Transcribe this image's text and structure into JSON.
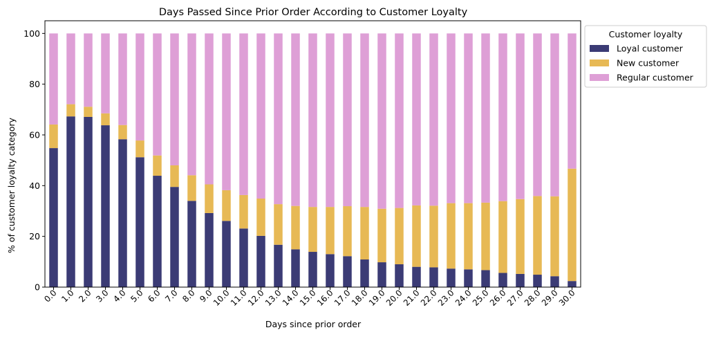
{
  "chart_data": {
    "type": "bar",
    "stacked": true,
    "title": "Days Passed Since Prior Order According to Customer Loyalty",
    "xlabel": "Days since prior order",
    "ylabel": "% of customer loyalty category",
    "ylim": [
      0,
      105
    ],
    "yticks": [
      0,
      20,
      40,
      60,
      80,
      100
    ],
    "grid": false,
    "legend": {
      "title": "Customer loyalty",
      "placement": "outside-top-right"
    },
    "categories": [
      "0.0",
      "1.0",
      "2.0",
      "3.0",
      "4.0",
      "5.0",
      "6.0",
      "7.0",
      "8.0",
      "9.0",
      "10.0",
      "11.0",
      "12.0",
      "13.0",
      "14.0",
      "15.0",
      "16.0",
      "17.0",
      "18.0",
      "19.0",
      "20.0",
      "21.0",
      "22.0",
      "23.0",
      "24.0",
      "25.0",
      "26.0",
      "27.0",
      "28.0",
      "29.0",
      "30.0"
    ],
    "series": [
      {
        "name": "Loyal customer",
        "color": "#3b3b75",
        "values": [
          54.8,
          67.3,
          67.1,
          63.8,
          58.3,
          51.2,
          43.9,
          39.5,
          34.0,
          29.2,
          26.1,
          23.1,
          20.2,
          16.7,
          14.9,
          13.9,
          13.0,
          12.2,
          10.9,
          9.8,
          9.0,
          8.0,
          7.8,
          7.3,
          7.0,
          6.7,
          5.6,
          5.2,
          4.9,
          4.3,
          2.4
        ]
      },
      {
        "name": "New customer",
        "color": "#e7b955",
        "values": [
          9.3,
          4.8,
          4.0,
          4.7,
          5.6,
          6.6,
          8.0,
          8.5,
          10.1,
          11.3,
          12.1,
          13.2,
          14.7,
          16.0,
          17.1,
          17.7,
          18.6,
          19.7,
          20.7,
          21.1,
          22.2,
          24.2,
          24.3,
          25.8,
          26.1,
          26.6,
          28.3,
          29.5,
          31.0,
          31.5,
          44.3
        ]
      },
      {
        "name": "Regular customer",
        "color": "#de9fd6",
        "values": [
          35.9,
          27.9,
          28.9,
          31.5,
          36.1,
          42.2,
          48.1,
          52.0,
          55.9,
          59.5,
          61.8,
          63.7,
          65.1,
          67.3,
          68.0,
          68.4,
          68.4,
          68.1,
          68.4,
          69.1,
          68.8,
          67.8,
          67.9,
          66.9,
          66.9,
          66.7,
          66.1,
          65.3,
          64.1,
          64.2,
          53.3
        ]
      }
    ]
  }
}
